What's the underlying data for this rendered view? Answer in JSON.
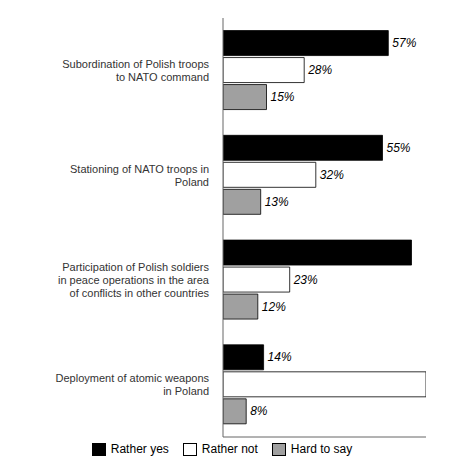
{
  "chart_data": {
    "type": "bar",
    "orientation": "horizontal",
    "categories": [
      "Subordination of Polish troops\nto NATO command",
      "Stationing of NATO troops in\nPoland",
      "Participation of Polish soldiers\nin peace operations in the area\nof conflicts in other countries",
      "Deployment of atomic weapons\nin Poland"
    ],
    "series": [
      {
        "name": "Rather yes",
        "color": "#000000",
        "values": [
          57,
          55,
          65,
          14
        ],
        "value_labels": [
          "57%",
          "55%",
          null,
          "14%"
        ]
      },
      {
        "name": "Rather not",
        "color": "#ffffff",
        "values": [
          28,
          32,
          23,
          70
        ],
        "value_labels": [
          "28%",
          "32%",
          "23%",
          null
        ]
      },
      {
        "name": "Hard to say",
        "color": "#a0a0a0",
        "values": [
          15,
          13,
          12,
          8
        ],
        "value_labels": [
          "15%",
          "13%",
          "12%",
          "8%"
        ]
      }
    ],
    "xlim": [
      0,
      70
    ],
    "data_labels": true,
    "tick_labels": "y",
    "legend": "bottom",
    "grid": false
  }
}
